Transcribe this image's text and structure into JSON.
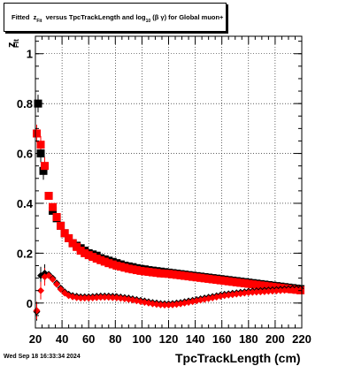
{
  "title": {
    "prefix": "Fitted",
    "z": "z",
    "z_sub": "Fit",
    "middle": "versus TpcTrackLength and log",
    "log_sub": "10",
    "suffix": "(β γ) for Global muon+"
  },
  "datestamp": "Wed Sep 18 16:33:34 2024",
  "colors": {
    "series_black": "#000000",
    "series_red": "#ff0000",
    "grid": "#000000"
  },
  "chart_data": {
    "type": "scatter",
    "title": "Fitted z_Fit versus TpcTrackLength and log10(β γ) for Global muon+",
    "xlabel": "TpcTrackLength (cm)",
    "ylabel": "z_Fit",
    "xlim": [
      20,
      220
    ],
    "ylim": [
      -0.1,
      1.07
    ],
    "xticks": [
      20,
      40,
      60,
      80,
      100,
      120,
      140,
      160,
      180,
      200,
      220
    ],
    "yticks": [
      0,
      0.2,
      0.4,
      0.6,
      0.8,
      1
    ],
    "ytick_labels": [
      "0",
      "0.2",
      "0.4",
      "0.6",
      "0.8",
      "1"
    ],
    "grid": true,
    "series": [
      {
        "marker": "square",
        "color": "#000000",
        "size": "large",
        "points": [
          [
            22,
            0.8
          ],
          [
            24,
            0.6
          ],
          [
            26,
            0.53
          ],
          [
            30,
            0.43
          ],
          [
            33,
            0.37
          ],
          [
            36,
            0.34
          ],
          [
            39,
            0.31
          ],
          [
            42,
            0.28
          ],
          [
            45,
            0.26
          ],
          [
            48,
            0.24
          ],
          [
            51,
            0.23
          ],
          [
            54,
            0.22
          ],
          [
            57,
            0.21
          ],
          [
            60,
            0.2
          ],
          [
            63,
            0.195
          ],
          [
            66,
            0.19
          ],
          [
            69,
            0.18
          ],
          [
            72,
            0.175
          ],
          [
            75,
            0.17
          ],
          [
            78,
            0.165
          ],
          [
            81,
            0.16
          ],
          [
            84,
            0.155
          ],
          [
            87,
            0.15
          ],
          [
            90,
            0.147
          ],
          [
            93,
            0.144
          ],
          [
            96,
            0.14
          ],
          [
            99,
            0.137
          ],
          [
            102,
            0.135
          ],
          [
            105,
            0.132
          ],
          [
            108,
            0.13
          ],
          [
            111,
            0.128
          ],
          [
            114,
            0.126
          ],
          [
            117,
            0.124
          ],
          [
            120,
            0.122
          ],
          [
            123,
            0.12
          ],
          [
            126,
            0.118
          ],
          [
            129,
            0.116
          ],
          [
            132,
            0.114
          ],
          [
            135,
            0.112
          ],
          [
            138,
            0.11
          ],
          [
            141,
            0.108
          ],
          [
            144,
            0.106
          ],
          [
            147,
            0.104
          ],
          [
            150,
            0.102
          ],
          [
            153,
            0.1
          ],
          [
            156,
            0.098
          ],
          [
            159,
            0.096
          ],
          [
            162,
            0.094
          ],
          [
            165,
            0.092
          ],
          [
            168,
            0.09
          ],
          [
            171,
            0.088
          ],
          [
            174,
            0.086
          ],
          [
            177,
            0.084
          ],
          [
            180,
            0.082
          ],
          [
            183,
            0.08
          ],
          [
            186,
            0.078
          ],
          [
            189,
            0.076
          ],
          [
            192,
            0.074
          ],
          [
            195,
            0.072
          ],
          [
            198,
            0.07
          ],
          [
            201,
            0.068
          ],
          [
            204,
            0.066
          ],
          [
            207,
            0.064
          ],
          [
            210,
            0.062
          ],
          [
            213,
            0.06
          ],
          [
            216,
            0.058
          ],
          [
            219,
            0.056
          ]
        ]
      },
      {
        "marker": "square",
        "color": "#ff0000",
        "size": "large",
        "points": [
          [
            21,
            0.68
          ],
          [
            24,
            0.635
          ],
          [
            27,
            0.55
          ],
          [
            30,
            0.43
          ],
          [
            33,
            0.385
          ],
          [
            36,
            0.345
          ],
          [
            39,
            0.31
          ],
          [
            42,
            0.28
          ],
          [
            45,
            0.26
          ],
          [
            48,
            0.24
          ],
          [
            51,
            0.225
          ],
          [
            54,
            0.21
          ],
          [
            57,
            0.2
          ],
          [
            60,
            0.192
          ],
          [
            63,
            0.185
          ],
          [
            66,
            0.178
          ],
          [
            69,
            0.172
          ],
          [
            72,
            0.166
          ],
          [
            75,
            0.16
          ],
          [
            78,
            0.155
          ],
          [
            81,
            0.15
          ],
          [
            84,
            0.146
          ],
          [
            87,
            0.142
          ],
          [
            90,
            0.138
          ],
          [
            93,
            0.135
          ],
          [
            96,
            0.132
          ],
          [
            99,
            0.129
          ],
          [
            102,
            0.127
          ],
          [
            105,
            0.125
          ],
          [
            108,
            0.123
          ],
          [
            111,
            0.121
          ],
          [
            114,
            0.119
          ],
          [
            117,
            0.118
          ],
          [
            120,
            0.117
          ],
          [
            123,
            0.115
          ],
          [
            126,
            0.113
          ],
          [
            129,
            0.111
          ],
          [
            132,
            0.109
          ],
          [
            135,
            0.107
          ],
          [
            138,
            0.105
          ],
          [
            141,
            0.103
          ],
          [
            144,
            0.101
          ],
          [
            147,
            0.099
          ],
          [
            150,
            0.097
          ],
          [
            153,
            0.095
          ],
          [
            156,
            0.093
          ],
          [
            159,
            0.091
          ],
          [
            162,
            0.089
          ],
          [
            165,
            0.087
          ],
          [
            168,
            0.085
          ],
          [
            171,
            0.083
          ],
          [
            174,
            0.081
          ],
          [
            177,
            0.079
          ],
          [
            180,
            0.077
          ],
          [
            183,
            0.075
          ],
          [
            186,
            0.073
          ],
          [
            189,
            0.071
          ],
          [
            192,
            0.069
          ],
          [
            195,
            0.067
          ],
          [
            198,
            0.065
          ],
          [
            201,
            0.063
          ],
          [
            204,
            0.061
          ],
          [
            207,
            0.059
          ],
          [
            210,
            0.057
          ],
          [
            213,
            0.055
          ],
          [
            216,
            0.053
          ],
          [
            219,
            0.051
          ]
        ]
      },
      {
        "marker": "diamond",
        "color": "#000000",
        "size": "small",
        "points": [
          [
            21,
            -0.035
          ],
          [
            24,
            0.11
          ],
          [
            27,
            0.12
          ],
          [
            30,
            0.115
          ],
          [
            33,
            0.1
          ],
          [
            36,
            0.08
          ],
          [
            39,
            0.06
          ],
          [
            42,
            0.045
          ],
          [
            45,
            0.035
          ],
          [
            48,
            0.03
          ],
          [
            51,
            0.027
          ],
          [
            54,
            0.025
          ],
          [
            57,
            0.025
          ],
          [
            60,
            0.025
          ],
          [
            63,
            0.026
          ],
          [
            66,
            0.027
          ],
          [
            69,
            0.028
          ],
          [
            72,
            0.028
          ],
          [
            75,
            0.028
          ],
          [
            78,
            0.027
          ],
          [
            81,
            0.026
          ],
          [
            84,
            0.024
          ],
          [
            87,
            0.022
          ],
          [
            90,
            0.02
          ],
          [
            93,
            0.017
          ],
          [
            96,
            0.014
          ],
          [
            99,
            0.011
          ],
          [
            102,
            0.008
          ],
          [
            105,
            0.005
          ],
          [
            108,
            0.002
          ],
          [
            111,
            0
          ],
          [
            114,
            -0.002
          ],
          [
            117,
            -0.003
          ],
          [
            120,
            -0.003
          ],
          [
            123,
            -0.002
          ],
          [
            126,
            0
          ],
          [
            129,
            0.002
          ],
          [
            132,
            0.005
          ],
          [
            135,
            0.008
          ],
          [
            138,
            0.011
          ],
          [
            141,
            0.014
          ],
          [
            144,
            0.017
          ],
          [
            147,
            0.02
          ],
          [
            150,
            0.023
          ],
          [
            153,
            0.026
          ],
          [
            156,
            0.029
          ],
          [
            159,
            0.032
          ],
          [
            162,
            0.035
          ],
          [
            165,
            0.037
          ],
          [
            168,
            0.039
          ],
          [
            171,
            0.041
          ],
          [
            174,
            0.043
          ],
          [
            177,
            0.045
          ],
          [
            180,
            0.047
          ],
          [
            183,
            0.048
          ],
          [
            186,
            0.049
          ],
          [
            189,
            0.05
          ],
          [
            192,
            0.051
          ],
          [
            195,
            0.052
          ],
          [
            198,
            0.053
          ],
          [
            201,
            0.054
          ],
          [
            204,
            0.055
          ],
          [
            207,
            0.056
          ],
          [
            210,
            0.057
          ],
          [
            213,
            0.058
          ],
          [
            216,
            0.058
          ],
          [
            219,
            0.058
          ]
        ]
      },
      {
        "marker": "diamond",
        "color": "#ff0000",
        "size": "small",
        "points": [
          [
            21,
            -0.03
          ],
          [
            24,
            0.05
          ],
          [
            27,
            0.105
          ],
          [
            30,
            0.11
          ],
          [
            33,
            0.095
          ],
          [
            36,
            0.075
          ],
          [
            39,
            0.055
          ],
          [
            42,
            0.04
          ],
          [
            45,
            0.03
          ],
          [
            48,
            0.025
          ],
          [
            51,
            0.022
          ],
          [
            54,
            0.02
          ],
          [
            57,
            0.02
          ],
          [
            60,
            0.02
          ],
          [
            63,
            0.021
          ],
          [
            66,
            0.022
          ],
          [
            69,
            0.023
          ],
          [
            72,
            0.023
          ],
          [
            75,
            0.023
          ],
          [
            78,
            0.022
          ],
          [
            81,
            0.021
          ],
          [
            84,
            0.019
          ],
          [
            87,
            0.017
          ],
          [
            90,
            0.015
          ],
          [
            93,
            0.012
          ],
          [
            96,
            0.009
          ],
          [
            99,
            0.006
          ],
          [
            102,
            0.003
          ],
          [
            105,
            0
          ],
          [
            108,
            -0.003
          ],
          [
            111,
            -0.005
          ],
          [
            114,
            -0.007
          ],
          [
            117,
            -0.008
          ],
          [
            120,
            -0.008
          ],
          [
            123,
            -0.007
          ],
          [
            126,
            -0.005
          ],
          [
            129,
            -0.003
          ],
          [
            132,
            0
          ],
          [
            135,
            0.003
          ],
          [
            138,
            0.006
          ],
          [
            141,
            0.009
          ],
          [
            144,
            0.012
          ],
          [
            147,
            0.015
          ],
          [
            150,
            0.018
          ],
          [
            153,
            0.021
          ],
          [
            156,
            0.024
          ],
          [
            159,
            0.027
          ],
          [
            162,
            0.03
          ],
          [
            165,
            0.032
          ],
          [
            168,
            0.034
          ],
          [
            171,
            0.036
          ],
          [
            174,
            0.038
          ],
          [
            177,
            0.04
          ],
          [
            180,
            0.042
          ],
          [
            183,
            0.043
          ],
          [
            186,
            0.044
          ],
          [
            189,
            0.045
          ],
          [
            192,
            0.046
          ],
          [
            195,
            0.047
          ],
          [
            198,
            0.048
          ],
          [
            201,
            0.049
          ],
          [
            204,
            0.05
          ],
          [
            207,
            0.051
          ],
          [
            210,
            0.052
          ],
          [
            213,
            0.053
          ],
          [
            216,
            0.053
          ],
          [
            219,
            0.053
          ]
        ]
      }
    ]
  }
}
